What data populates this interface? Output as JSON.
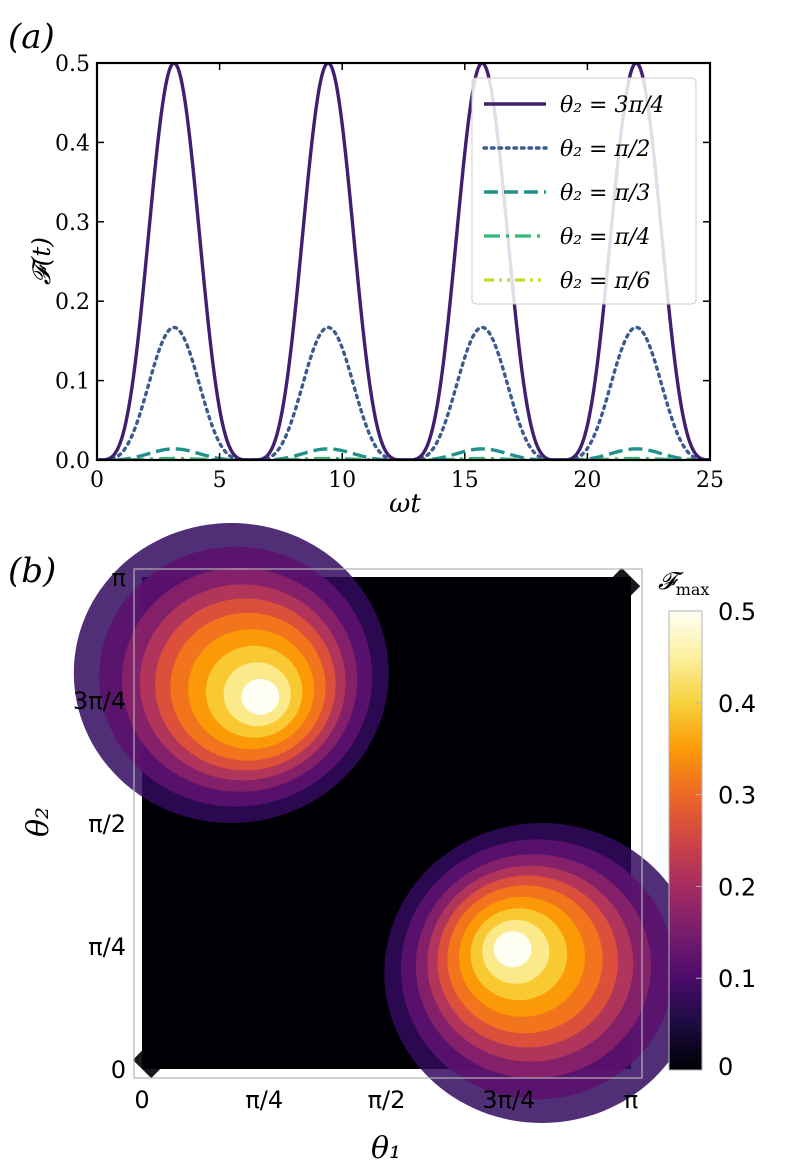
{
  "panel_a": {
    "label": "(a)"
  },
  "panel_b": {
    "label": "(b)"
  },
  "chart_data": [
    {
      "type": "line",
      "panel": "(a)",
      "xlabel": "ωt",
      "ylabel": "𝓕(t)",
      "xlim": [
        0,
        25
      ],
      "ylim": [
        0,
        0.5
      ],
      "x_ticks": [
        0,
        5,
        10,
        15,
        20,
        25
      ],
      "x_tick_labels": [
        "0",
        "5",
        "10",
        "15",
        "20",
        "25"
      ],
      "y_ticks": [
        0.0,
        0.1,
        0.2,
        0.3,
        0.4,
        0.5
      ],
      "y_tick_labels": [
        "0.0",
        "0.1",
        "0.2",
        "0.3",
        "0.4",
        "0.5"
      ],
      "legend_position": "top-right",
      "period": 6.2832,
      "peak_x": [
        3.14,
        9.42,
        15.71,
        21.99
      ],
      "series": [
        {
          "name": "θ₂ = 3π/4",
          "color": "#3f1f6e",
          "style": "solid",
          "peak": 0.5
        },
        {
          "name": "θ₂ = π/2",
          "color": "#3b5c8c",
          "style": "dotted",
          "peak": 0.167
        },
        {
          "name": "θ₂ = π/3",
          "color": "#21918c",
          "style": "dashed",
          "peak": 0.014
        },
        {
          "name": "θ₂ = π/4",
          "color": "#35b779",
          "style": "dashdot",
          "peak": 0.002
        },
        {
          "name": "θ₂ = π/6",
          "color": "#bddf26",
          "style": "dashdotdot",
          "peak": 0.0002
        }
      ]
    },
    {
      "type": "heatmap",
      "panel": "(b)",
      "xlabel": "θ₁",
      "ylabel": "θ₂",
      "xlim": [
        0,
        3.1416
      ],
      "ylim": [
        0,
        3.1416
      ],
      "x_tick_labels": [
        "0",
        "π/4",
        "π/2",
        "3π/4",
        "π"
      ],
      "y_tick_labels": [
        "0",
        "π/4",
        "π/2",
        "3π/4",
        "π"
      ],
      "colorbar_title": "𝓕",
      "colorbar_title_sub": "max",
      "colorbar_range": [
        0,
        0.5
      ],
      "colorbar_ticks": [
        "0",
        "0.1",
        "0.2",
        "0.3",
        "0.4",
        "0.5"
      ],
      "colormap": "inferno",
      "maxima": [
        {
          "theta1": "π/4",
          "theta2": "3π/4",
          "value": 0.5
        },
        {
          "theta1": "3π/4",
          "theta2": "π/4",
          "value": 0.5
        }
      ],
      "zero_line": "θ₁ = θ₂"
    }
  ]
}
